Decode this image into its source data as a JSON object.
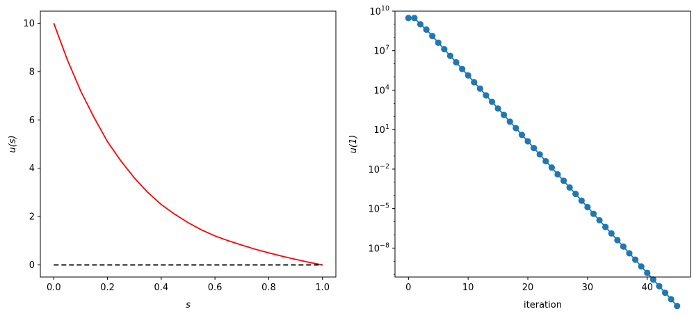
{
  "chart_data": [
    {
      "type": "line",
      "xlabel": "s",
      "ylabel": "u(s)",
      "xlim": [
        -0.05,
        1.05
      ],
      "ylim": [
        -0.5,
        10.5
      ],
      "xticks": [
        0.0,
        0.2,
        0.4,
        0.6,
        0.8,
        1.0
      ],
      "xtick_labels": [
        "0.0",
        "0.2",
        "0.4",
        "0.6",
        "0.8",
        "1.0"
      ],
      "yticks": [
        0,
        2,
        4,
        6,
        8,
        10
      ],
      "ytick_labels": [
        "0",
        "2",
        "4",
        "6",
        "8",
        "10"
      ],
      "grid": false,
      "series": [
        {
          "style": "solid",
          "color": "#ff0000",
          "x": [
            0.0,
            0.05,
            0.1,
            0.15,
            0.2,
            0.25,
            0.3,
            0.35,
            0.4,
            0.45,
            0.5,
            0.55,
            0.6,
            0.65,
            0.7,
            0.75,
            0.8,
            0.85,
            0.9,
            0.95,
            1.0
          ],
          "y": [
            10.0,
            8.5,
            7.2,
            6.1,
            5.1,
            4.3,
            3.6,
            3.0,
            2.5,
            2.1,
            1.75,
            1.45,
            1.2,
            1.0,
            0.82,
            0.65,
            0.5,
            0.36,
            0.23,
            0.11,
            0.0
          ]
        },
        {
          "style": "dashed",
          "color": "#000000",
          "x": [
            0.0,
            1.0
          ],
          "y": [
            0.0,
            0.0
          ]
        }
      ]
    },
    {
      "type": "scatter",
      "xlabel": "iteration",
      "ylabel": "u(1)",
      "yscale": "log",
      "xlim": [
        -2.25,
        47.25
      ],
      "ylim_log10": [
        -10.2,
        10.0
      ],
      "xticks": [
        0,
        10,
        20,
        30,
        40
      ],
      "xtick_labels": [
        "0",
        "10",
        "20",
        "30",
        "40"
      ],
      "yticks_log10": [
        10,
        7,
        4,
        1,
        -2,
        -5,
        -8
      ],
      "ytick_labels": [
        {
          "base": "10",
          "exp": "10"
        },
        {
          "base": "10",
          "exp": "7"
        },
        {
          "base": "10",
          "exp": "4"
        },
        {
          "base": "10",
          "exp": "1"
        },
        {
          "base": "10",
          "exp": "−2"
        },
        {
          "base": "10",
          "exp": "−5"
        },
        {
          "base": "10",
          "exp": "−8"
        }
      ],
      "grid": false,
      "series": [
        {
          "style": "line-marker",
          "color": "#1f77b4",
          "x": [
            0,
            1,
            2,
            3,
            4,
            5,
            6,
            7,
            8,
            9,
            10,
            11,
            12,
            13,
            14,
            15,
            16,
            17,
            18,
            19,
            20,
            21,
            22,
            23,
            24,
            25,
            26,
            27,
            28,
            29,
            30,
            31,
            32,
            33,
            34,
            35,
            36,
            37,
            38,
            39,
            40,
            41,
            42,
            43,
            44,
            45
          ],
          "y": [
            3000000000.0,
            3000000000.0,
            1000000000.0,
            400000000.0,
            130000000.0,
            40000000.0,
            13000000.0,
            4000000.0,
            1300000.0,
            400000.0,
            130000.0,
            40000.0,
            13000.0,
            4000.0,
            1300.0,
            400.0,
            130.0,
            40.0,
            13.0,
            4,
            1.3,
            0.4,
            0.13,
            0.04,
            0.013,
            0.004,
            0.0013,
            0.0004,
            0.00013,
            4e-05,
            1.3e-05,
            4e-06,
            1.3e-06,
            4e-07,
            1.3e-07,
            4e-08,
            1.3e-08,
            4e-09,
            1.3e-09,
            4e-10,
            1.3e-10,
            4e-11,
            1.3e-11,
            4e-12,
            1.3e-12,
            4e-13
          ]
        }
      ]
    }
  ]
}
